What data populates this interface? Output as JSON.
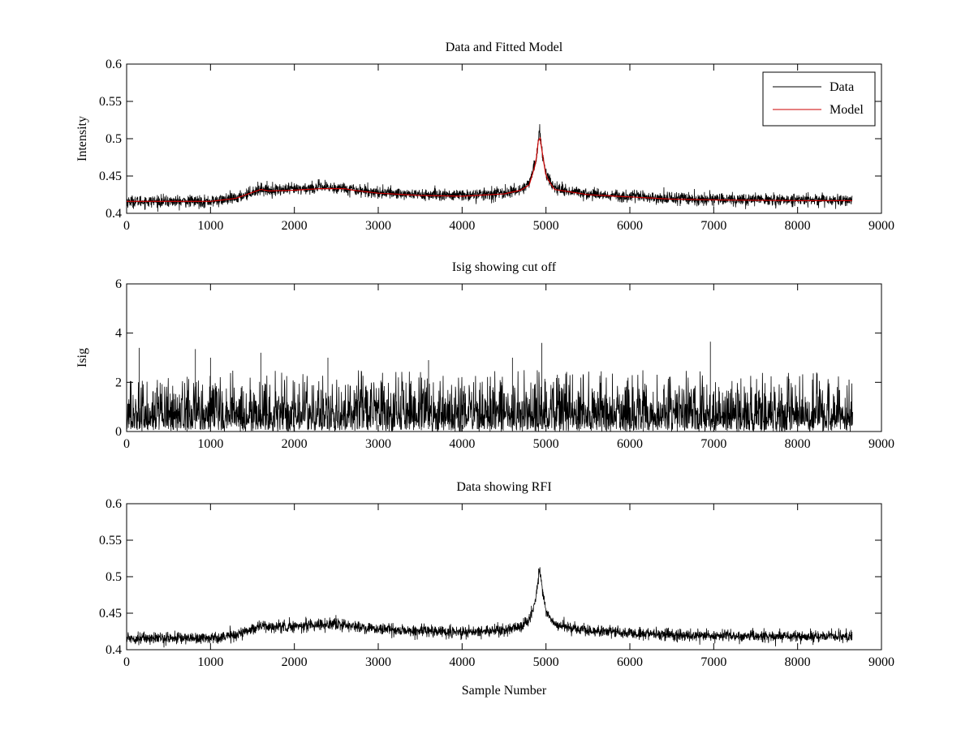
{
  "chart_data": [
    {
      "id": "top",
      "type": "line",
      "title": "Data and Fitted Model",
      "xlabel": "",
      "ylabel": "Intensity",
      "xlim": [
        0,
        9000
      ],
      "ylim": [
        0.4,
        0.6
      ],
      "xticks": [
        "0",
        "1000",
        "2000",
        "3000",
        "4000",
        "5000",
        "6000",
        "7000",
        "8000",
        "9000"
      ],
      "yticks": [
        "0.4",
        "0.45",
        "0.5",
        "0.55",
        "0.6"
      ],
      "legend": {
        "position": "top-right",
        "entries": [
          "Data",
          "Model"
        ]
      },
      "series": [
        {
          "name": "Data",
          "color": "#000000",
          "noise": 0.004,
          "points": [
            [
              0,
              0.416
            ],
            [
              500,
              0.416
            ],
            [
              1000,
              0.416
            ],
            [
              1300,
              0.42
            ],
            [
              1600,
              0.433
            ],
            [
              1700,
              0.431
            ],
            [
              2000,
              0.432
            ],
            [
              2300,
              0.435
            ],
            [
              2600,
              0.434
            ],
            [
              2700,
              0.432
            ],
            [
              3000,
              0.428
            ],
            [
              3500,
              0.425
            ],
            [
              4000,
              0.424
            ],
            [
              4500,
              0.427
            ],
            [
              4700,
              0.432
            ],
            [
              4800,
              0.44
            ],
            [
              4880,
              0.47
            ],
            [
              4920,
              0.51
            ],
            [
              4960,
              0.48
            ],
            [
              5000,
              0.452
            ],
            [
              5100,
              0.434
            ],
            [
              5500,
              0.426
            ],
            [
              6000,
              0.423
            ],
            [
              6500,
              0.42
            ],
            [
              7000,
              0.419
            ],
            [
              8000,
              0.418
            ],
            [
              8650,
              0.418
            ]
          ]
        },
        {
          "name": "Model",
          "color": "#cc0000",
          "noise": 0,
          "points": [
            [
              0,
              0.416
            ],
            [
              500,
              0.416
            ],
            [
              1000,
              0.416
            ],
            [
              1300,
              0.42
            ],
            [
              1600,
              0.432
            ],
            [
              1700,
              0.43
            ],
            [
              2000,
              0.431
            ],
            [
              2300,
              0.433
            ],
            [
              2600,
              0.433
            ],
            [
              2700,
              0.431
            ],
            [
              3000,
              0.427
            ],
            [
              3500,
              0.424
            ],
            [
              4000,
              0.423
            ],
            [
              4500,
              0.426
            ],
            [
              4700,
              0.431
            ],
            [
              4800,
              0.438
            ],
            [
              4880,
              0.468
            ],
            [
              4920,
              0.509
            ],
            [
              4960,
              0.478
            ],
            [
              5000,
              0.45
            ],
            [
              5100,
              0.432
            ],
            [
              5500,
              0.425
            ],
            [
              6000,
              0.422
            ],
            [
              6500,
              0.419
            ],
            [
              7000,
              0.418
            ],
            [
              8000,
              0.417
            ],
            [
              8650,
              0.417
            ]
          ]
        }
      ]
    },
    {
      "id": "middle",
      "type": "line",
      "title": "Isig showing cut off",
      "xlabel": "",
      "ylabel": "Isig",
      "xlim": [
        0,
        9000
      ],
      "ylim": [
        0,
        6
      ],
      "xticks": [
        "0",
        "1000",
        "2000",
        "3000",
        "4000",
        "5000",
        "6000",
        "7000",
        "8000",
        "9000"
      ],
      "yticks": [
        "0",
        "2",
        "4",
        "6"
      ],
      "series": [
        {
          "name": "Isig",
          "color": "#000000",
          "sample_count": 8660,
          "typical_max": 2.5,
          "peaks": [
            [
              150,
              3.4
            ],
            [
              820,
              3.35
            ],
            [
              1000,
              3.0
            ],
            [
              1600,
              3.2
            ],
            [
              2400,
              3.0
            ],
            [
              4950,
              3.6
            ],
            [
              6960,
              3.65
            ],
            [
              4600,
              3.0
            ],
            [
              3600,
              2.9
            ]
          ]
        }
      ]
    },
    {
      "id": "bottom",
      "type": "line",
      "title": "Data showing RFI",
      "xlabel": "Sample Number",
      "ylabel": "",
      "xlim": [
        0,
        9000
      ],
      "ylim": [
        0.4,
        0.6
      ],
      "xticks": [
        "0",
        "1000",
        "2000",
        "3000",
        "4000",
        "5000",
        "6000",
        "7000",
        "8000",
        "9000"
      ],
      "yticks": [
        "0.4",
        "0.45",
        "0.5",
        "0.55",
        "0.6"
      ],
      "series": [
        {
          "name": "Data",
          "color": "#000000",
          "noise": 0.004,
          "points": [
            [
              0,
              0.416
            ],
            [
              500,
              0.416
            ],
            [
              1000,
              0.416
            ],
            [
              1300,
              0.42
            ],
            [
              1600,
              0.433
            ],
            [
              1700,
              0.431
            ],
            [
              2000,
              0.432
            ],
            [
              2300,
              0.435
            ],
            [
              2600,
              0.434
            ],
            [
              2700,
              0.432
            ],
            [
              3000,
              0.428
            ],
            [
              3500,
              0.425
            ],
            [
              4000,
              0.424
            ],
            [
              4500,
              0.427
            ],
            [
              4700,
              0.432
            ],
            [
              4800,
              0.44
            ],
            [
              4880,
              0.47
            ],
            [
              4920,
              0.51
            ],
            [
              4960,
              0.48
            ],
            [
              5000,
              0.452
            ],
            [
              5100,
              0.434
            ],
            [
              5500,
              0.426
            ],
            [
              6000,
              0.423
            ],
            [
              6500,
              0.42
            ],
            [
              7000,
              0.419
            ],
            [
              8000,
              0.418
            ],
            [
              8650,
              0.418
            ]
          ]
        }
      ]
    }
  ]
}
